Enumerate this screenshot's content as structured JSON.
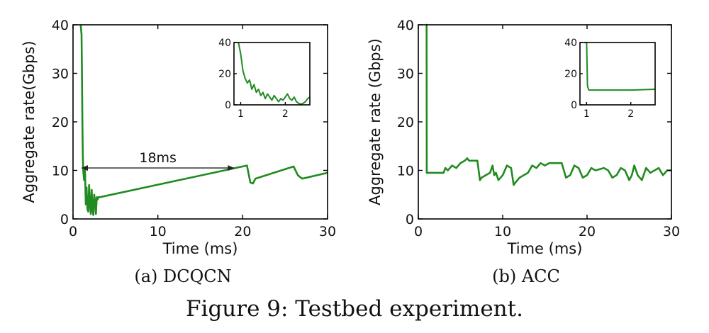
{
  "figure_caption": "Figure 9: Testbed experiment.",
  "colors": {
    "series": "#218a21",
    "axis": "#000000"
  },
  "chart_data": [
    {
      "id": "a",
      "type": "line",
      "subcaption": "(a) DCQCN",
      "xlabel": "Time (ms)",
      "ylabel": "Aggregate rate(Gbps)",
      "xlim": [
        0,
        30
      ],
      "ylim": [
        0,
        40
      ],
      "xticks": [
        0,
        10,
        20,
        30
      ],
      "yticks": [
        0,
        10,
        20,
        30,
        40
      ],
      "grid": false,
      "series": [
        {
          "x": [
            0.9,
            1.0,
            1.05,
            1.1,
            1.15,
            1.2,
            1.3,
            1.4,
            1.5,
            1.6,
            1.7,
            1.8,
            1.9,
            2.0,
            2.1,
            2.2,
            2.3,
            2.4,
            2.5,
            2.6,
            2.7,
            2.8,
            2.9,
            3.0,
            3.2,
            20.5,
            20.9,
            21.2,
            21.5,
            26.0,
            26.5,
            27.0,
            27.5,
            30.0
          ],
          "y": [
            40,
            38,
            30,
            20,
            13,
            10,
            8,
            10.5,
            3,
            6.5,
            2,
            1.5,
            7,
            3,
            1,
            6,
            2,
            0.8,
            5,
            3.5,
            1,
            4.5,
            4,
            4.5,
            4.5,
            11,
            7.5,
            7.3,
            8.3,
            10.8,
            9,
            8.3,
            8.5,
            9.5
          ]
        }
      ],
      "annotation": {
        "text": "18ms",
        "x_start": 1.0,
        "x_end": 19.0,
        "y": 10.5
      },
      "inset": {
        "xlim": [
          0.85,
          2.55
        ],
        "ylim": [
          0,
          40
        ],
        "xticks": [
          1,
          2
        ],
        "yticks": [
          0,
          20,
          40
        ],
        "series": {
          "x": [
            0.95,
            1.0,
            1.05,
            1.1,
            1.15,
            1.2,
            1.25,
            1.3,
            1.35,
            1.4,
            1.45,
            1.5,
            1.55,
            1.6,
            1.65,
            1.7,
            1.75,
            1.8,
            1.85,
            1.9,
            1.95,
            2.0,
            2.05,
            2.1,
            2.15,
            2.2,
            2.25,
            2.3,
            2.35,
            2.4,
            2.45,
            2.5,
            2.55
          ],
          "y": [
            40,
            33,
            22,
            17,
            14,
            16,
            10,
            13,
            8,
            10,
            6,
            8,
            4,
            7,
            5,
            3,
            6,
            4,
            2,
            4,
            3,
            5,
            7,
            4,
            3,
            5,
            2,
            1,
            0.5,
            1,
            2,
            4,
            5
          ]
        }
      }
    },
    {
      "id": "b",
      "type": "line",
      "subcaption": "(b) ACC",
      "xlabel": "Time (ms)",
      "ylabel": "Aggregate rate (Gbps)",
      "xlim": [
        0,
        30
      ],
      "ylim": [
        0,
        40
      ],
      "xticks": [
        0,
        10,
        20,
        30
      ],
      "yticks": [
        0,
        10,
        20,
        30,
        40
      ],
      "grid": false,
      "series": [
        {
          "x": [
            0.9,
            0.98,
            1.0,
            1.5,
            2.5,
            3.0,
            3.2,
            3.5,
            4.0,
            4.5,
            5.0,
            5.5,
            5.8,
            6.0,
            6.5,
            7.0,
            7.3,
            7.5,
            8.0,
            8.5,
            8.8,
            9.0,
            9.2,
            9.5,
            10.0,
            10.5,
            11.0,
            11.3,
            11.5,
            12.0,
            13.0,
            13.5,
            14.0,
            14.5,
            15.0,
            15.5,
            16.0,
            17.0,
            17.5,
            18.0,
            18.5,
            19.0,
            19.5,
            20.0,
            20.5,
            21.0,
            22.0,
            22.5,
            23.0,
            23.5,
            24.0,
            24.5,
            25.0,
            25.3,
            25.6,
            26.0,
            26.5,
            27.0,
            27.5,
            28.0,
            28.5,
            29.0,
            29.5,
            30.0
          ],
          "y": [
            40,
            40,
            9.5,
            9.5,
            9.5,
            9.5,
            10.5,
            10,
            11,
            10.5,
            11.5,
            12,
            12.5,
            12,
            12,
            12,
            8,
            8.5,
            9,
            9.5,
            11,
            9,
            9.5,
            8,
            9,
            11,
            10.5,
            7,
            7.5,
            8.5,
            9.5,
            11,
            10.5,
            11.5,
            11,
            11.5,
            11.5,
            11.5,
            8.5,
            9,
            11,
            10.5,
            8.5,
            9,
            10.5,
            10,
            10.5,
            10,
            8.5,
            9,
            10.5,
            10,
            8,
            9,
            11,
            9,
            8,
            10.5,
            9.5,
            10,
            10.5,
            9,
            10,
            10
          ]
        }
      ],
      "inset": {
        "xlim": [
          0.85,
          2.55
        ],
        "ylim": [
          0,
          40
        ],
        "xticks": [
          1,
          2
        ],
        "yticks": [
          0,
          20,
          40
        ],
        "series": {
          "x": [
            0.95,
            1.0,
            1.02,
            1.05,
            1.5,
            2.0,
            2.55
          ],
          "y": [
            40,
            40,
            12,
            9.5,
            9.5,
            9.5,
            10
          ]
        }
      }
    }
  ]
}
